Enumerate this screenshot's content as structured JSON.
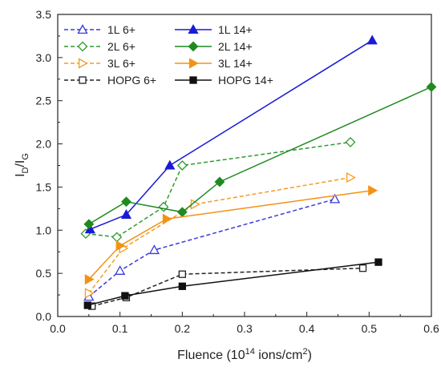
{
  "chart_data": {
    "type": "line",
    "xlabel": {
      "main": "Fluence (10",
      "sup": "14",
      "mid": " ions/cm",
      "sup2": "2",
      "end": ")"
    },
    "ylabel": {
      "main": "I",
      "sub1": "D",
      "slash": "/I",
      "sub2": "G"
    },
    "xlim": [
      0.0,
      0.6
    ],
    "ylim": [
      0.0,
      3.5
    ],
    "xticks": [
      0.0,
      0.1,
      0.2,
      0.3,
      0.4,
      0.5,
      0.6
    ],
    "xtick_labels": [
      "0.0",
      "0.1",
      "0.2",
      "0.3",
      "0.4",
      "0.5",
      "0.6"
    ],
    "yticks": [
      0.0,
      0.5,
      1.0,
      1.5,
      2.0,
      2.5,
      3.0,
      3.5
    ],
    "ytick_labels": [
      "0.0",
      "0.5",
      "1.0",
      "1.5",
      "2.0",
      "2.5",
      "3.0",
      "3.5"
    ],
    "grid": false,
    "legend_position": "top-left",
    "series": [
      {
        "name": "1L 6+",
        "color": "#3a3adb",
        "marker": "triangle-up",
        "filled": false,
        "dashed": true,
        "x": [
          0.05,
          0.1,
          0.155,
          0.445
        ],
        "y": [
          0.23,
          0.53,
          0.77,
          1.36
        ]
      },
      {
        "name": "2L 6+",
        "color": "#2e9a2e",
        "marker": "diamond",
        "filled": false,
        "dashed": true,
        "x": [
          0.045,
          0.095,
          0.17,
          0.2,
          0.47
        ],
        "y": [
          0.96,
          0.92,
          1.27,
          1.75,
          2.02
        ]
      },
      {
        "name": "3L 6+",
        "color": "#f39c24",
        "marker": "triangle-right",
        "filled": false,
        "dashed": true,
        "x": [
          0.05,
          0.105,
          0.22,
          0.47
        ],
        "y": [
          0.27,
          0.79,
          1.3,
          1.61
        ]
      },
      {
        "name": "HOPG 6+",
        "color": "#222222",
        "marker": "square",
        "filled": false,
        "dashed": true,
        "x": [
          0.055,
          0.11,
          0.2,
          0.49
        ],
        "y": [
          0.12,
          0.22,
          0.49,
          0.56
        ]
      },
      {
        "name": "1L 14+",
        "color": "#1a1ad6",
        "marker": "triangle-up",
        "filled": true,
        "dashed": false,
        "x": [
          0.052,
          0.11,
          0.18,
          0.505
        ],
        "y": [
          1.01,
          1.18,
          1.75,
          3.2
        ]
      },
      {
        "name": "2L 14+",
        "color": "#1f8a1f",
        "marker": "diamond",
        "filled": true,
        "dashed": false,
        "x": [
          0.05,
          0.11,
          0.2,
          0.26,
          0.6
        ],
        "y": [
          1.07,
          1.33,
          1.21,
          1.56,
          2.66
        ]
      },
      {
        "name": "3L 14+",
        "color": "#f39214",
        "marker": "triangle-right",
        "filled": true,
        "dashed": false,
        "x": [
          0.05,
          0.1,
          0.175,
          0.505
        ],
        "y": [
          0.43,
          0.82,
          1.13,
          1.46
        ]
      },
      {
        "name": "HOPG 14+",
        "color": "#111111",
        "marker": "square",
        "filled": true,
        "dashed": false,
        "x": [
          0.048,
          0.108,
          0.2,
          0.515
        ],
        "y": [
          0.13,
          0.24,
          0.35,
          0.63
        ]
      }
    ]
  }
}
